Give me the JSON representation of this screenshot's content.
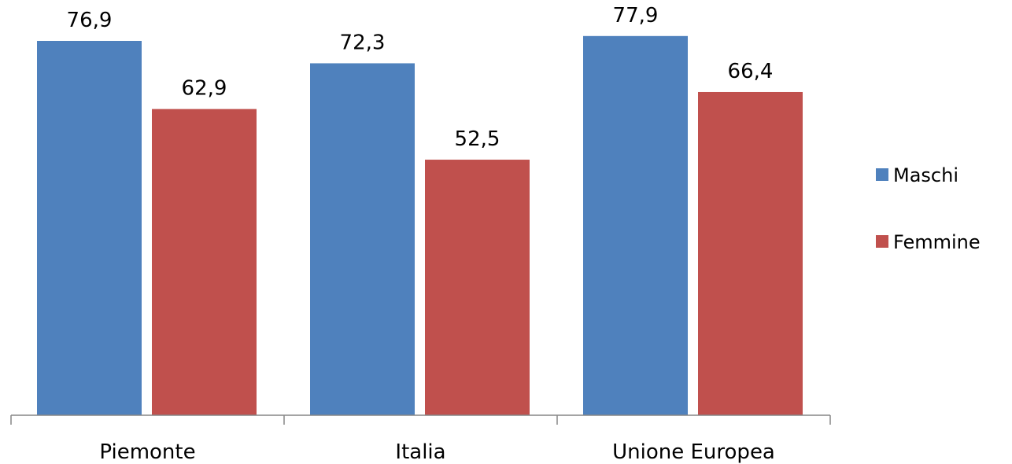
{
  "chart_data": {
    "type": "bar",
    "categories": [
      "Piemonte",
      "Italia",
      "Unione Europea"
    ],
    "series": [
      {
        "name": "Maschi",
        "values": [
          76.9,
          72.3,
          77.9
        ],
        "labels": [
          "76,9",
          "72,3",
          "77,9"
        ],
        "color": "#4F81BD"
      },
      {
        "name": "Femmine",
        "values": [
          62.9,
          52.5,
          66.4
        ],
        "labels": [
          "62,9",
          "52,5",
          "66,4"
        ],
        "color": "#C0504D"
      }
    ],
    "title": "",
    "xlabel": "",
    "ylabel": "",
    "ylim": [
      0,
      80
    ],
    "grid": false,
    "legend_position": "right"
  }
}
